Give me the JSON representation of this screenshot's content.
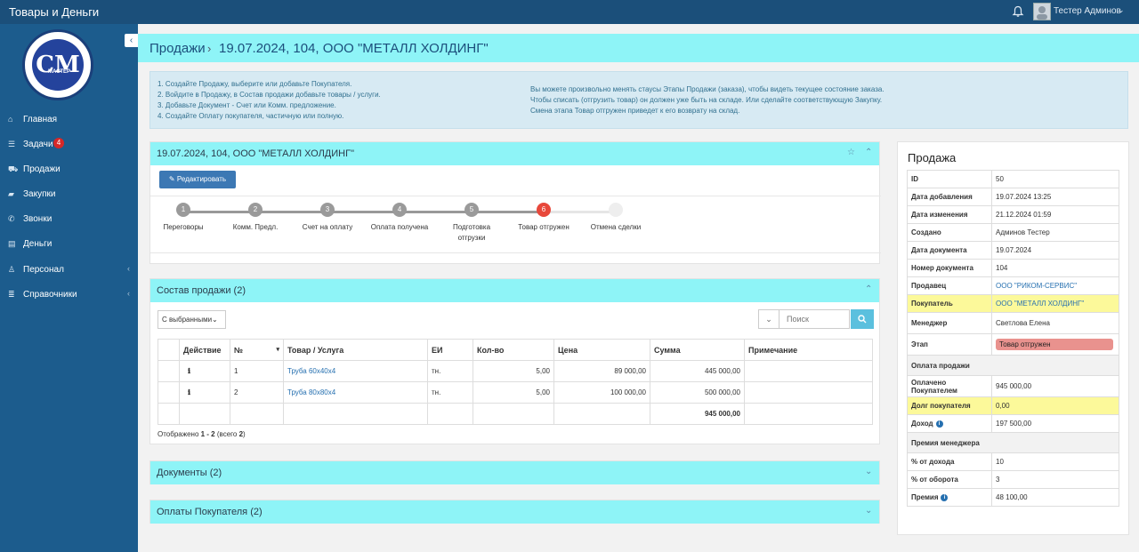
{
  "app": {
    "title": "Товары и Деньги"
  },
  "user": {
    "name": "Тестер Админов"
  },
  "sidebar": {
    "logo_text": "СМ",
    "logo_sub": "МАСТЕР",
    "collapse_icon": "‹",
    "items": [
      {
        "label": "Главная",
        "icon": "home-icon"
      },
      {
        "label": "Задачи",
        "icon": "tasks-icon",
        "badge": "4"
      },
      {
        "label": "Продажи",
        "icon": "cart-icon"
      },
      {
        "label": "Закупки",
        "icon": "truck-icon"
      },
      {
        "label": "Звонки",
        "icon": "phone-icon"
      },
      {
        "label": "Деньги",
        "icon": "money-icon"
      },
      {
        "label": "Персонал",
        "icon": "user-icon"
      },
      {
        "label": "Справочники",
        "icon": "list-icon"
      }
    ]
  },
  "breadcrumb": {
    "root": "Продажи",
    "sep": "›",
    "current": "19.07.2024, 104, ООО \"МЕТАЛЛ ХОЛДИНГ\""
  },
  "info": {
    "left": [
      "1. Создайте Продажу, выберите или добавьте Покупателя.",
      "2. Войдите в Продажу, в Состав продажи добавьте товары / услуги.",
      "3. Добавьте Документ - Счет или Комм. предложение.",
      "4. Создайте Оплату покупателя, частичную или полную."
    ],
    "right": [
      "Вы можете произвольно менять стаусы Этапы Продажи (заказа), чтобы видеть текущее состояние заказа.",
      "Чтобы списать (отгрузить товар) он должен уже быть на складе. Или сделайте соответствующую Закупку.",
      "Смена этапа Товар отгружен приведет к его возврату на склад."
    ]
  },
  "sale_card": {
    "title": "19.07.2024, 104, ООО \"МЕТАЛЛ ХОЛДИНГ\"",
    "edit_label": "Редактировать",
    "steps": [
      {
        "n": "1",
        "label": "Переговоры"
      },
      {
        "n": "2",
        "label": "Комм. Предл."
      },
      {
        "n": "3",
        "label": "Счет на оплату"
      },
      {
        "n": "4",
        "label": "Оплата получена"
      },
      {
        "n": "5",
        "label": "Подготовка отгрузки"
      },
      {
        "n": "6",
        "label": "Товар отгружен"
      },
      {
        "n": "",
        "label": "Отмена сделки"
      }
    ],
    "active_color": "#e8483b",
    "inactive_color": "#9a9a9a"
  },
  "composition": {
    "title": "Состав продажи (2)",
    "bulk_label": "С выбранными",
    "search_placeholder": "Поиск",
    "columns": [
      "Действие",
      "№",
      "Товар / Услуга",
      "ЕИ",
      "Кол-во",
      "Цена",
      "Сумма",
      "Примечание"
    ],
    "rows": [
      {
        "n": "1",
        "item": "Труба 60х40х4",
        "unit": "тн.",
        "qty": "5,00",
        "price": "89 000,00",
        "sum": "445 000,00",
        "note": ""
      },
      {
        "n": "2",
        "item": "Труба 80х80х4",
        "unit": "тн.",
        "qty": "5,00",
        "price": "100 000,00",
        "sum": "500 000,00",
        "note": ""
      }
    ],
    "total": "945 000,00",
    "shown_prefix": "Отображено ",
    "shown_range": "1 - 2",
    "shown_suffix": " (всего ",
    "shown_total": "2",
    "shown_close": ")"
  },
  "documents": {
    "title": "Документы (2)"
  },
  "payments": {
    "title": "Оплаты Покупателя  (2)"
  },
  "sale_panel": {
    "title": "Продажа",
    "rows": [
      {
        "k": "ID",
        "v": "50"
      },
      {
        "k": "Дата добавления",
        "v": "19.07.2024 13:25"
      },
      {
        "k": "Дата изменения",
        "v": "21.12.2024 01:59"
      },
      {
        "k": "Создано",
        "v": "Админов Тестер"
      },
      {
        "k": "Дата документа",
        "v": "19.07.2024"
      },
      {
        "k": "Номер документа",
        "v": "104"
      },
      {
        "k": "Продавец",
        "v": "ООО \"РИКОМ-СЕРВИС\""
      },
      {
        "k": "Покупатель",
        "v": "ООО \"МЕТАЛЛ ХОЛДИНГ\""
      },
      {
        "k": "Менеджер",
        "v": "Светлова Елена"
      },
      {
        "k": "Этап",
        "v": "Товар отгружен"
      }
    ],
    "payment_header": "Оплата продажи",
    "payment_rows": [
      {
        "k": "Оплачено Покупателем",
        "v": "945 000,00"
      },
      {
        "k": "Долг покупателя",
        "v": "0,00"
      },
      {
        "k": "Доход",
        "v": "197 500,00"
      }
    ],
    "bonus_header": "Премия менеджера",
    "bonus_rows": [
      {
        "k": "% от дохода",
        "v": "10"
      },
      {
        "k": "% от оборота",
        "v": "3"
      },
      {
        "k": "Премия",
        "v": "48 100,00"
      }
    ],
    "highlight_color": "#fcf99a",
    "stage_color": "#e9928e"
  }
}
